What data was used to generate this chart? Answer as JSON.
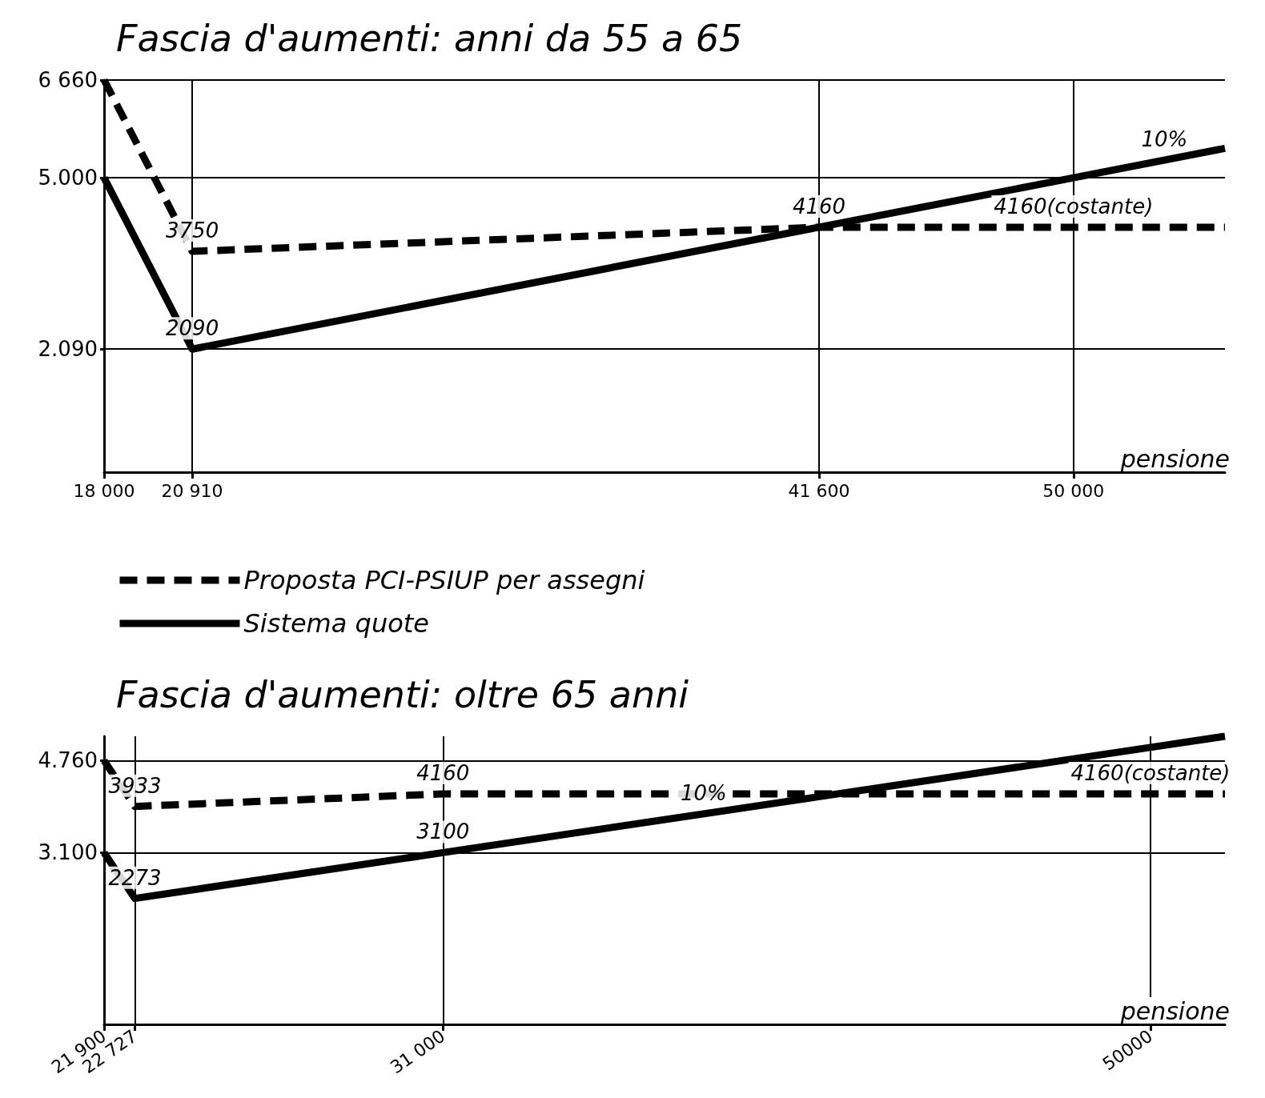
{
  "chart_data": [
    {
      "type": "line",
      "title": "Fascia d'aumenti: anni da 55 a 65",
      "xlabel": "pensione",
      "xlim": [
        18000,
        55000
      ],
      "ylim": [
        0,
        6660
      ],
      "xticks": [
        {
          "value": 18000,
          "label": "18 000"
        },
        {
          "value": 20910,
          "label": "20 910"
        },
        {
          "value": 41600,
          "label": "41 600"
        },
        {
          "value": 50000,
          "label": "50 000"
        }
      ],
      "yticks": [
        {
          "value": 2090,
          "label": "2.090"
        },
        {
          "value": 5000,
          "label": "5.000"
        },
        {
          "value": 6660,
          "label": "6 660"
        }
      ],
      "series": [
        {
          "name": "Proposta PCI-PSIUP per assegni",
          "color": "#000000",
          "line_style": "dashed",
          "x": [
            18000,
            20910,
            41600,
            50000,
            55000
          ],
          "values": [
            6660,
            3750,
            4160,
            4160,
            4160
          ]
        },
        {
          "name": "Sistema quote",
          "color": "#000000",
          "line_style": "solid",
          "x": [
            18000,
            20910,
            41600,
            50000,
            55000
          ],
          "values": [
            5000,
            2090,
            4160,
            5000,
            5500
          ]
        }
      ],
      "annotations": [
        {
          "text": "3750",
          "x": 20910,
          "y": 3750
        },
        {
          "text": "2090",
          "x": 20910,
          "y": 2090
        },
        {
          "text": "4160",
          "x": 41600,
          "y": 4160
        },
        {
          "text": "4160(costante)",
          "x": 50000,
          "y": 4160
        },
        {
          "text": "10%",
          "x": 53000,
          "y": 5300
        }
      ],
      "grid": true,
      "legend": "bottom left",
      "marker": "none"
    },
    {
      "type": "line",
      "title": "Fascia d'aumenti: oltre 65 anni",
      "xlabel": "pensione",
      "xlim": [
        21900,
        52000
      ],
      "ylim": [
        0,
        5200
      ],
      "xticks": [
        {
          "value": 21900,
          "label": "21 900"
        },
        {
          "value": 22727,
          "label": "22 727"
        },
        {
          "value": 31000,
          "label": "31 000"
        },
        50000
      ],
      "yticks": [
        {
          "value": 3100,
          "label": "3.100"
        },
        {
          "value": 4760,
          "label": "4.760"
        }
      ],
      "series": [
        {
          "color": "#000000",
          "line_style": "dashed",
          "x": [
            21900,
            22727,
            31000,
            50000,
            52000
          ],
          "values": [
            4760,
            3933,
            4160,
            4160,
            4160
          ]
        },
        {
          "color": "#000000",
          "line_style": "solid",
          "x": [
            21900,
            22727,
            31000,
            50000,
            52000
          ],
          "values": [
            3100,
            2273,
            3100,
            5000,
            5200
          ]
        }
      ],
      "annotations": [
        {
          "text": "3933",
          "x": 22727,
          "y": 3933
        },
        {
          "text": "2273",
          "x": 22727,
          "y": 2273
        },
        {
          "text": "4160",
          "x": 31000,
          "y": 4160
        },
        {
          "text": "3100",
          "x": 31000,
          "y": 3100
        },
        {
          "text": "10%",
          "x": 38000,
          "y": 3800
        },
        {
          "text": "4160(costante)",
          "x": 50000,
          "y": 4160
        }
      ],
      "grid": true,
      "legend": false,
      "marker": "none"
    }
  ]
}
